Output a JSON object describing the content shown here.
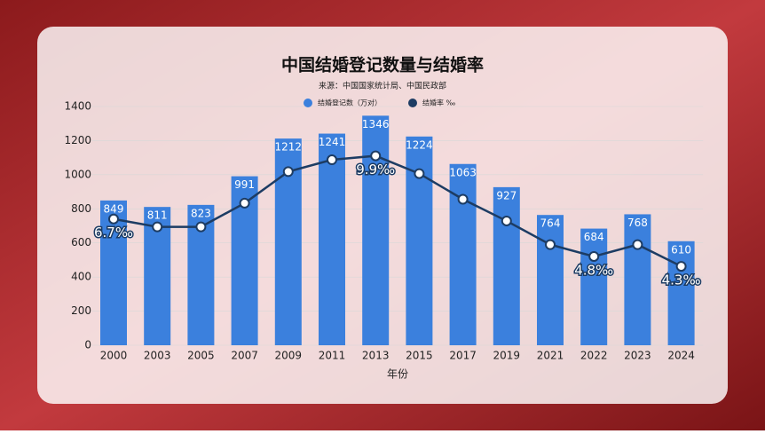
{
  "chart_data": {
    "type": "bar_line",
    "title": "中国结婚登记数量与结婚率",
    "subtitle": "来源：中国国家统计局、中国民政部",
    "x_label": "年份",
    "categories": [
      "2000",
      "2003",
      "2005",
      "2007",
      "2009",
      "2011",
      "2013",
      "2015",
      "2017",
      "2019",
      "2021",
      "2022",
      "2023",
      "2024"
    ],
    "series": [
      {
        "name": "结婚登记数（万对）",
        "color": "#3b80dd",
        "type": "bar",
        "values": [
          849,
          811,
          823,
          991,
          1212,
          1241,
          1346,
          1224,
          1063,
          927,
          764,
          684,
          768,
          610
        ]
      },
      {
        "name": "结婚率 ‰",
        "color": "#1d3c63",
        "type": "line",
        "axis": "y2",
        "values": [
          6.7,
          6.3,
          6.3,
          7.5,
          9.1,
          9.7,
          9.9,
          9.0,
          7.7,
          6.6,
          5.4,
          4.8,
          5.4,
          4.3
        ],
        "value_labels": [
          "6.7‰",
          null,
          null,
          null,
          null,
          null,
          "9.9‰",
          null,
          null,
          null,
          null,
          "4.8‰",
          null,
          "4.3‰"
        ]
      }
    ],
    "ylim": [
      0,
      1400
    ],
    "yticks": [
      0,
      200,
      400,
      600,
      800,
      1000,
      1200,
      1400
    ],
    "y2lim": [
      0.3,
      12.4
    ],
    "grid": true
  }
}
